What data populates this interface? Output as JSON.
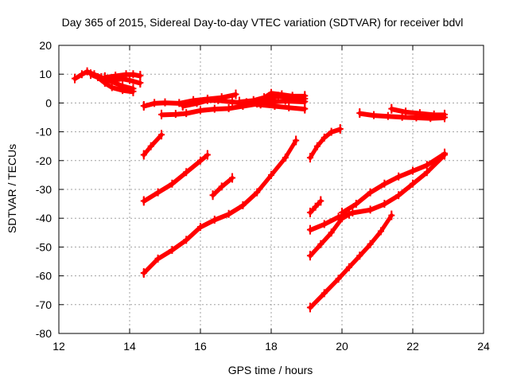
{
  "chart_data": {
    "type": "scatter",
    "title": "Day 365 of 2015, Sidereal Day-to-day VTEC variation (SDTVAR) for receiver bdvl",
    "xlabel": "GPS time / hours",
    "ylabel": "SDTVAR / TECUs",
    "xlim": [
      12,
      24
    ],
    "ylim": [
      -80,
      20
    ],
    "xticks": [
      12,
      14,
      16,
      18,
      20,
      22,
      24
    ],
    "yticks": [
      -80,
      -70,
      -60,
      -50,
      -40,
      -30,
      -20,
      -10,
      0,
      10,
      20
    ],
    "grid": true,
    "legend": "none",
    "marker": "plus",
    "series_color": "#ff0000",
    "series": [
      {
        "points": [
          [
            12.45,
            8.5
          ],
          [
            12.65,
            10
          ],
          [
            12.8,
            11
          ],
          [
            13.0,
            10
          ],
          [
            13.2,
            9
          ],
          [
            13.5,
            7.5
          ],
          [
            13.8,
            6
          ],
          [
            14.1,
            5
          ]
        ]
      },
      {
        "points": [
          [
            12.9,
            10
          ],
          [
            13.1,
            9
          ],
          [
            13.3,
            7
          ],
          [
            13.5,
            5.5
          ],
          [
            13.8,
            4.5
          ],
          [
            14.1,
            4
          ]
        ]
      },
      {
        "points": [
          [
            13.3,
            9
          ],
          [
            13.6,
            9.5
          ],
          [
            13.9,
            10
          ],
          [
            14.1,
            10
          ],
          [
            14.3,
            9.5
          ]
        ]
      },
      {
        "points": [
          [
            13.5,
            8
          ],
          [
            13.8,
            8.5
          ],
          [
            14.0,
            8
          ],
          [
            14.3,
            7
          ]
        ]
      },
      {
        "points": [
          [
            14.4,
            -1
          ],
          [
            14.7,
            0
          ],
          [
            15.0,
            0.2
          ],
          [
            15.4,
            0
          ],
          [
            15.8,
            1
          ],
          [
            16.2,
            1.5
          ],
          [
            16.6,
            2
          ],
          [
            17.0,
            3
          ]
        ]
      },
      {
        "points": [
          [
            15.5,
            -1
          ],
          [
            15.9,
            0
          ],
          [
            16.2,
            1
          ],
          [
            16.5,
            1
          ],
          [
            16.9,
            0.5
          ],
          [
            17.3,
            0
          ],
          [
            17.6,
            0.5
          ],
          [
            17.9,
            1.5
          ],
          [
            18.2,
            2.5
          ],
          [
            18.6,
            2
          ],
          [
            18.95,
            1.5
          ]
        ]
      },
      {
        "points": [
          [
            14.9,
            -4
          ],
          [
            15.3,
            -3.8
          ],
          [
            15.6,
            -3.5
          ],
          [
            16.0,
            -2.5
          ],
          [
            16.4,
            -2
          ],
          [
            16.8,
            -1.8
          ],
          [
            17.2,
            -1
          ],
          [
            17.6,
            -0.2
          ],
          [
            18.0,
            0.5
          ],
          [
            18.4,
            0.8
          ],
          [
            18.95,
            0.5
          ]
        ]
      },
      {
        "points": [
          [
            17.1,
            0.5
          ],
          [
            17.5,
            1
          ],
          [
            17.8,
            2
          ],
          [
            18.0,
            3.5
          ],
          [
            18.3,
            3
          ],
          [
            18.6,
            2.5
          ],
          [
            18.95,
            2.5
          ]
        ]
      },
      {
        "points": [
          [
            17.3,
            0
          ],
          [
            17.7,
            -0.5
          ],
          [
            18.1,
            -1
          ],
          [
            18.5,
            -1.5
          ],
          [
            18.95,
            -2
          ]
        ]
      },
      {
        "points": [
          [
            14.4,
            -18
          ],
          [
            14.6,
            -15
          ],
          [
            14.9,
            -11
          ]
        ]
      },
      {
        "points": [
          [
            14.4,
            -34
          ],
          [
            14.8,
            -31
          ],
          [
            15.2,
            -28
          ],
          [
            15.6,
            -24
          ],
          [
            16.0,
            -20
          ],
          [
            16.2,
            -18
          ]
        ]
      },
      {
        "points": [
          [
            16.35,
            -32
          ],
          [
            16.6,
            -29
          ],
          [
            16.9,
            -26
          ]
        ]
      },
      {
        "points": [
          [
            14.4,
            -59
          ],
          [
            14.8,
            -54
          ],
          [
            15.2,
            -51
          ],
          [
            15.6,
            -47.5
          ],
          [
            16.0,
            -43
          ],
          [
            16.4,
            -40.5
          ],
          [
            16.8,
            -38.5
          ],
          [
            17.2,
            -35.5
          ],
          [
            17.6,
            -31
          ],
          [
            18.0,
            -25
          ],
          [
            18.4,
            -19
          ],
          [
            18.7,
            -13
          ]
        ]
      },
      {
        "points": [
          [
            19.1,
            -19
          ],
          [
            19.3,
            -15
          ],
          [
            19.5,
            -12
          ],
          [
            19.7,
            -10
          ],
          [
            19.95,
            -9
          ]
        ]
      },
      {
        "points": [
          [
            19.1,
            -38
          ],
          [
            19.25,
            -36
          ],
          [
            19.4,
            -34
          ]
        ]
      },
      {
        "points": [
          [
            19.1,
            -53
          ],
          [
            19.4,
            -49
          ],
          [
            19.7,
            -45
          ],
          [
            20.0,
            -40
          ],
          [
            20.2,
            -38.5
          ]
        ]
      },
      {
        "points": [
          [
            19.1,
            -44
          ],
          [
            19.5,
            -42
          ],
          [
            19.9,
            -39.5
          ],
          [
            20.3,
            -38
          ],
          [
            20.8,
            -37
          ],
          [
            21.2,
            -35
          ],
          [
            21.6,
            -32
          ],
          [
            22.0,
            -28
          ],
          [
            22.4,
            -24
          ],
          [
            22.9,
            -18
          ]
        ]
      },
      {
        "points": [
          [
            20.0,
            -38
          ],
          [
            20.4,
            -35
          ],
          [
            20.8,
            -31
          ],
          [
            21.2,
            -28
          ],
          [
            21.6,
            -25.5
          ],
          [
            22.0,
            -23.5
          ],
          [
            22.4,
            -21.5
          ],
          [
            22.9,
            -17.5
          ]
        ]
      },
      {
        "points": [
          [
            19.1,
            -71
          ],
          [
            19.5,
            -66
          ],
          [
            19.9,
            -61
          ],
          [
            20.2,
            -57
          ],
          [
            20.5,
            -53
          ],
          [
            20.8,
            -49
          ],
          [
            21.1,
            -44.5
          ],
          [
            21.4,
            -39
          ]
        ]
      },
      {
        "points": [
          [
            20.5,
            -3.5
          ],
          [
            20.9,
            -4.2
          ],
          [
            21.3,
            -4.5
          ],
          [
            21.7,
            -4.8
          ],
          [
            22.1,
            -5
          ],
          [
            22.5,
            -5.2
          ],
          [
            22.9,
            -5
          ]
        ]
      },
      {
        "points": [
          [
            21.4,
            -2
          ],
          [
            21.8,
            -3
          ],
          [
            22.2,
            -3.5
          ],
          [
            22.6,
            -4
          ],
          [
            22.9,
            -4
          ]
        ]
      }
    ]
  }
}
